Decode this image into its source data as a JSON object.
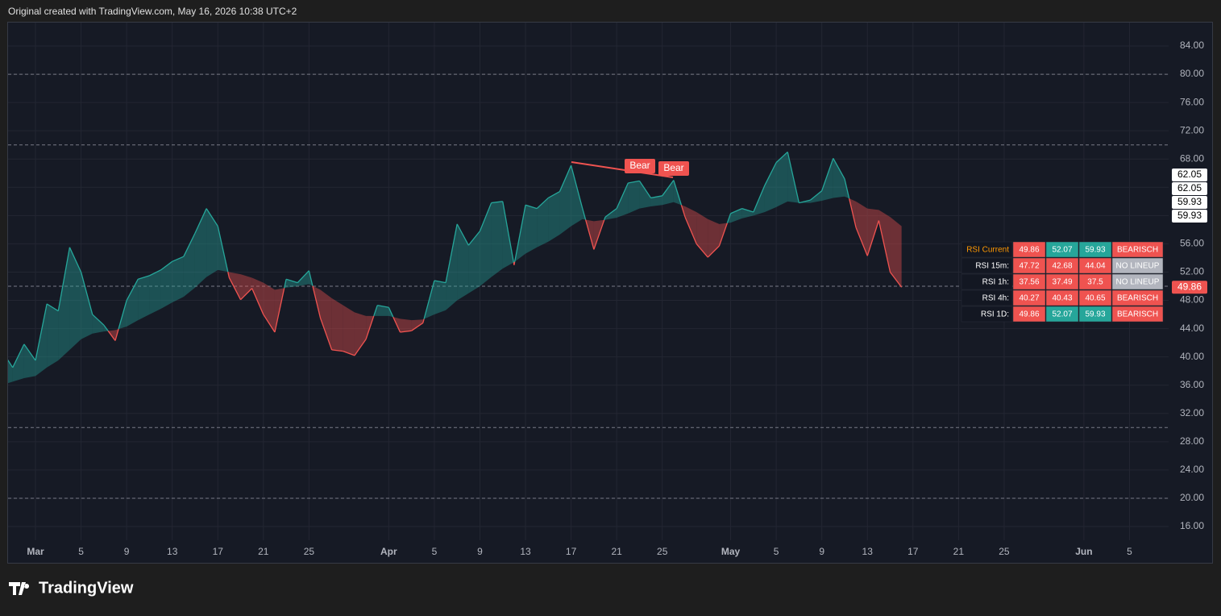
{
  "header": {
    "text": "Original created with TradingView.com, May 16, 2026 10:38 UTC+2"
  },
  "footer": {
    "brand": "TradingView"
  },
  "chart_data": {
    "type": "line",
    "categories": [
      null,
      null,
      null,
      "Mar",
      null,
      null,
      null,
      "5",
      null,
      null,
      null,
      "9",
      null,
      null,
      null,
      "13",
      null,
      null,
      null,
      "17",
      null,
      null,
      null,
      "21",
      null,
      null,
      null,
      "25",
      null,
      null,
      null,
      null,
      null,
      null,
      "Apr",
      null,
      null,
      null,
      "5",
      null,
      null,
      null,
      "9",
      null,
      null,
      null,
      "13",
      null,
      null,
      null,
      "17",
      null,
      null,
      null,
      "21",
      null,
      null,
      null,
      "25",
      null,
      null,
      null,
      null,
      null,
      "May",
      null,
      null,
      null,
      "5",
      null,
      null,
      null,
      "9",
      null,
      null,
      null,
      "13",
      null,
      null,
      null,
      "17",
      null,
      null,
      null,
      "21",
      null,
      null,
      null,
      "25",
      null,
      null,
      null,
      null,
      null,
      null,
      "Jun",
      null,
      null,
      null,
      "5",
      null,
      null,
      null
    ],
    "series": [
      {
        "values": [
          41,
          38.5,
          41.8,
          39.5,
          47.5,
          46.5,
          55.5,
          52,
          46,
          44.5,
          42.3,
          48,
          51,
          51.5,
          52.3,
          53.5,
          54.2,
          57.5,
          61,
          58.5,
          51.2,
          48.1,
          49.7,
          46,
          43.5,
          51,
          50.5,
          52.2,
          45.5,
          41,
          40.8,
          40.2,
          42.5,
          47.3,
          47,
          43.5,
          43.7,
          44.8,
          50.8,
          50.5,
          58.8,
          55.8,
          57.8,
          61.8,
          62,
          53,
          61.5,
          61,
          62.5,
          63.4,
          67.1,
          61,
          55.2,
          59.8,
          61,
          64.6,
          64.9,
          62.5,
          62.8,
          65,
          59.8,
          56,
          54.1,
          55.7,
          60.3,
          61,
          60.5,
          64.3,
          67.5,
          69,
          61.8,
          62.2,
          63.5,
          68.1,
          65.2,
          58.3,
          54.3,
          59.3,
          52,
          49.86,
          null,
          null,
          null,
          null,
          null,
          null,
          null,
          null,
          null,
          null,
          null,
          null,
          null,
          null,
          null,
          null,
          null,
          null,
          null,
          null,
          null,
          null,
          null
        ]
      },
      {
        "values": [
          36,
          36.5,
          37,
          37.3,
          38.5,
          39.5,
          41,
          42.5,
          43.3,
          43.6,
          43.8,
          44.3,
          45.2,
          46,
          46.8,
          47.7,
          48.5,
          49.8,
          51.3,
          52.3,
          52,
          51.7,
          51.2,
          50.5,
          49.5,
          49.8,
          50,
          50.3,
          49.5,
          48.3,
          47.3,
          46.3,
          45.8,
          45.8,
          45.8,
          45.4,
          45.2,
          45.3,
          46,
          46.6,
          48,
          49,
          50,
          51.3,
          52.5,
          53.4,
          54.6,
          55.5,
          56.3,
          57.3,
          58.5,
          59.5,
          59.2,
          59.4,
          59.7,
          60.3,
          61,
          61.3,
          61.5,
          61.9,
          61.3,
          60.5,
          59.5,
          58.8,
          59,
          59.6,
          60,
          60.5,
          61.2,
          62,
          61.8,
          61.8,
          62.1,
          62.5,
          62.7,
          62,
          61,
          60.8,
          59.8,
          58.5,
          null,
          null,
          null,
          null,
          null,
          null,
          null,
          null,
          null,
          null,
          null,
          null,
          null,
          null,
          null,
          null,
          null,
          null,
          null,
          null,
          null,
          null,
          null
        ]
      }
    ],
    "up_color": "#26a69a",
    "down_color": "#ef5350",
    "ylim": [
      14.06,
      87.31
    ],
    "yticks": [
      {
        "value": 16,
        "label": "16.00"
      },
      {
        "value": 20,
        "label": "20.00"
      },
      {
        "value": 24,
        "label": "24.00"
      },
      {
        "value": 28,
        "label": "28.00"
      },
      {
        "value": 32,
        "label": "32.00"
      },
      {
        "value": 36,
        "label": "36.00"
      },
      {
        "value": 40,
        "label": "40.00"
      },
      {
        "value": 44,
        "label": "44.00"
      },
      {
        "value": 48,
        "label": "48.00"
      },
      {
        "value": 52,
        "label": "52.00"
      },
      {
        "value": 56,
        "label": "56.00"
      },
      {
        "value": 60,
        "label": "60.00"
      },
      {
        "value": 64,
        "label": "64.00"
      },
      {
        "value": 68,
        "label": "68.00"
      },
      {
        "value": 72,
        "label": "72.00"
      },
      {
        "value": 76,
        "label": "76.00"
      },
      {
        "value": 80,
        "label": "80.00"
      },
      {
        "value": 84,
        "label": "84.00"
      }
    ],
    "hlines": [
      80,
      70,
      50,
      30,
      20
    ],
    "grid": true,
    "price_labels": [
      62.05,
      62.05,
      59.93,
      59.93
    ],
    "annotations": [
      {
        "text": "Bear"
      },
      {
        "text": "Bear"
      }
    ],
    "table": {
      "rows": [
        [
          "RSI Current",
          49.86,
          52.07,
          59.93,
          "BEARISCH"
        ],
        [
          "RSI 15m:",
          47.72,
          42.68,
          44.04,
          "NO LINEUP"
        ],
        [
          "RSI 1h:",
          37.56,
          37.49,
          37.5,
          "NO LINEUP"
        ],
        [
          "RSI 4h:",
          40.27,
          40.43,
          40.65,
          "BEARISCH"
        ],
        [
          "RSI 1D:",
          49.86,
          52.07,
          59.93,
          "BEARISCH"
        ]
      ],
      "cell_colors": [
        [
          "#ef5350",
          "#26a69a",
          "#26a69a",
          "#ef5350"
        ],
        [
          "#ef5350",
          "#ef5350",
          "#ef5350",
          "#b2b5be"
        ],
        [
          "#ef5350",
          "#ef5350",
          "#ef5350",
          "#b2b5be"
        ],
        [
          "#ef5350",
          "#ef5350",
          "#ef5350",
          "#ef5350"
        ],
        [
          "#ef5350",
          "#26a69a",
          "#26a69a",
          "#ef5350"
        ]
      ]
    }
  }
}
